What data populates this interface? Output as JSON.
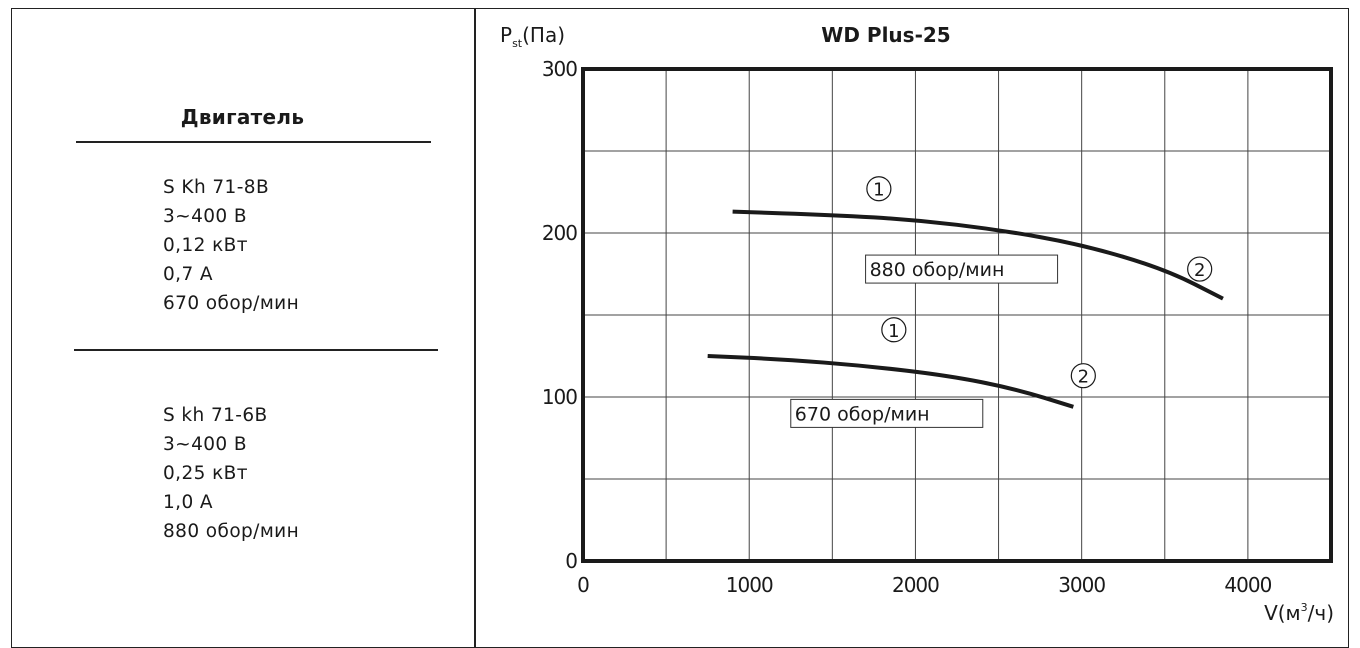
{
  "motor_panel": {
    "heading": "Двигатель",
    "motors": [
      {
        "lines": [
          "S Kh 71-8B",
          "3~400 В",
          "0,12 кВт",
          "0,7 А",
          "670 обор/мин"
        ]
      },
      {
        "lines": [
          "S kh 71-6B",
          "3~400 В",
          "0,25 кВт",
          "1,0 А",
          "880 обор/мин"
        ]
      }
    ]
  },
  "chart_data": {
    "type": "line",
    "title": "WD Plus-25",
    "ylabel": "P",
    "ylabel_sub": "st",
    "ylabel_unit": "(Па)",
    "xlabel": "V(м",
    "xlabel_sup": "3",
    "xlabel_unit": "/ч)",
    "xlim": [
      0,
      4500
    ],
    "ylim": [
      0,
      300
    ],
    "x_ticks": [
      0,
      1000,
      2000,
      3000,
      4000
    ],
    "y_ticks": [
      0,
      100,
      200,
      300
    ],
    "grid": true,
    "series": [
      {
        "name": "880 обор/мин",
        "x": [
          900,
          1500,
          2000,
          2500,
          3000,
          3500,
          3850
        ],
        "y": [
          213,
          211,
          208,
          202,
          193,
          178,
          160
        ],
        "label_pos": [
          1700,
          178
        ],
        "point_labels": [
          {
            "text": "1",
            "x": 1780,
            "y": 227
          },
          {
            "text": "2",
            "x": 3710,
            "y": 178
          }
        ]
      },
      {
        "name": "670 обор/мин",
        "x": [
          750,
          1200,
          1700,
          2200,
          2600,
          2950
        ],
        "y": [
          125,
          123,
          119,
          113,
          105,
          94
        ],
        "label_pos": [
          1250,
          90
        ],
        "point_labels": [
          {
            "text": "1",
            "x": 1870,
            "y": 141
          },
          {
            "text": "2",
            "x": 3010,
            "y": 113
          }
        ]
      }
    ]
  }
}
